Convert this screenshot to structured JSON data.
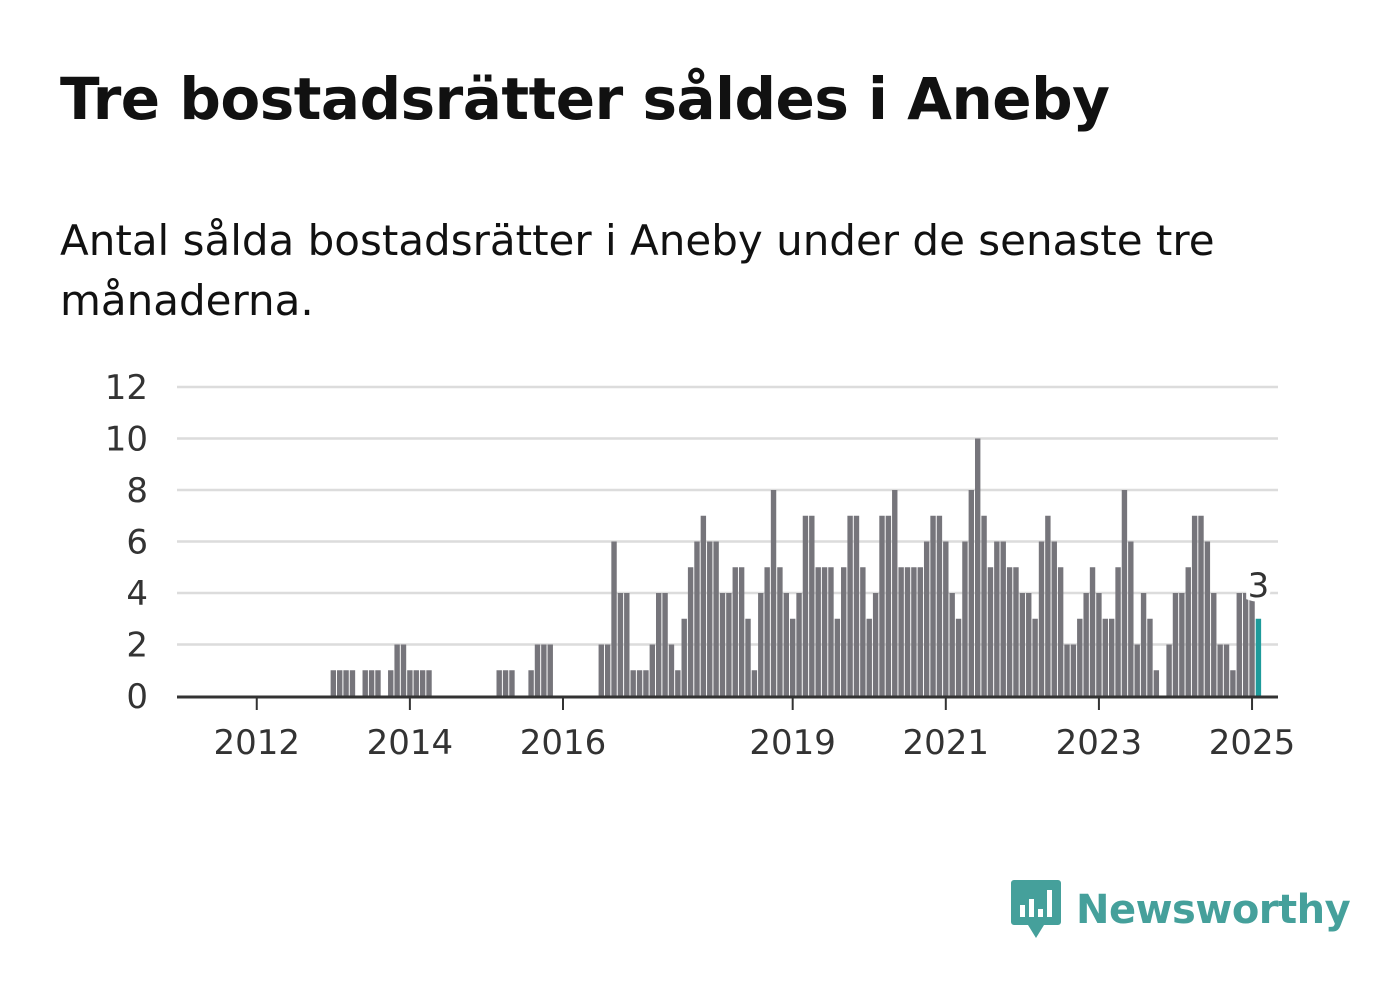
{
  "title": "Tre bostadsrätter såldes i Aneby",
  "subtitle": "Antal sålda bostadsrätter i Aneby under de senaste tre månaderna.",
  "brand": {
    "name": "Newsworthy",
    "icon": "bar-chart-speech-bubble-icon",
    "color": "#45a09b"
  },
  "chart_data": {
    "type": "bar",
    "title": "",
    "xlabel": "",
    "ylabel": "",
    "ylim": [
      0,
      12
    ],
    "y_ticks": [
      0,
      2,
      4,
      6,
      8,
      10,
      12
    ],
    "x_ticks": [
      "2012",
      "2014",
      "2016",
      "2019",
      "2021",
      "2023",
      "2025"
    ],
    "grid": true,
    "legend": "none",
    "colors": {
      "bars": "#76757b",
      "highlight": "#1e9b9b",
      "grid": "#dcdcdc",
      "baseline": "#333333"
    },
    "values": [
      0,
      0,
      0,
      0,
      0,
      0,
      0,
      0,
      0,
      0,
      0,
      0,
      0,
      0,
      0,
      0,
      0,
      0,
      0,
      0,
      0,
      0,
      0,
      0,
      1,
      1,
      1,
      1,
      0,
      1,
      1,
      1,
      0,
      1,
      2,
      2,
      1,
      1,
      1,
      1,
      0,
      0,
      0,
      0,
      0,
      0,
      0,
      0,
      0,
      0,
      1,
      1,
      1,
      0,
      0,
      1,
      2,
      2,
      2,
      0,
      0,
      0,
      0,
      0,
      0,
      0,
      2,
      2,
      6,
      4,
      4,
      1,
      1,
      1,
      2,
      4,
      4,
      2,
      1,
      3,
      5,
      6,
      7,
      6,
      6,
      4,
      4,
      5,
      5,
      3,
      1,
      4,
      5,
      8,
      5,
      4,
      3,
      4,
      7,
      7,
      5,
      5,
      5,
      3,
      5,
      7,
      7,
      5,
      3,
      4,
      7,
      7,
      8,
      5,
      5,
      5,
      5,
      6,
      7,
      7,
      6,
      4,
      3,
      6,
      8,
      10,
      7,
      5,
      6,
      6,
      5,
      5,
      4,
      4,
      3,
      6,
      7,
      6,
      5,
      2,
      2,
      3,
      4,
      5,
      4,
      3,
      3,
      5,
      8,
      6,
      2,
      4,
      3,
      1,
      0,
      2,
      4,
      4,
      5,
      7,
      7,
      6,
      4,
      2,
      2,
      1,
      4,
      4,
      4,
      3
    ],
    "highlight_label": "3"
  }
}
